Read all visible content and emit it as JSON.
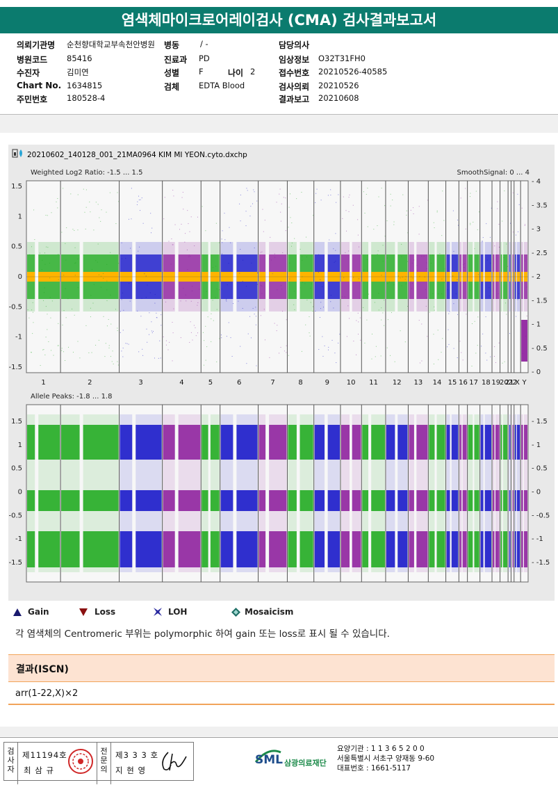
{
  "report": {
    "title": "염색체마이크로어레이검사 (CMA) 검사결과보고서"
  },
  "patient": {
    "labels": {
      "institution": "의뢰기관명",
      "hospital_code": "병원코드",
      "name": "수진자",
      "chart": "Chart No.",
      "rrn": "주민번호",
      "ward": "병동",
      "department": "진료과",
      "sex": "성별",
      "age": "나이",
      "specimen": "검체",
      "physician": "담당의사",
      "clinical": "임상정보",
      "receipt": "접수번호",
      "request": "검사의뢰",
      "report": "결과보고"
    },
    "values": {
      "institution": "순천향대학교부속천안병원",
      "hospital_code": "85416",
      "name": "김미연",
      "chart": "1634815",
      "rrn": "180528-4",
      "ward": "/ -",
      "department": "PD",
      "sex": "F",
      "age": "2",
      "specimen": "EDTA Blood",
      "physician": "",
      "clinical": "O32T31FH0",
      "receipt": "20210526-40585",
      "request": "20210526",
      "report": "20210608"
    }
  },
  "plot": {
    "file_label": "20210602_140128_001_21MA0964 KIM MI YEON.cyto.dxchp",
    "top_label": "Weighted Log2 Ratio: -1.5 ... 1.5",
    "top_right_label": "SmoothSignal: 0 ... 4",
    "bottom_label": "Allele Peaks: -1.8 ... 1.8",
    "top_left_ticks": [
      "1.5",
      "1",
      "0.5",
      "0",
      "-0.5",
      "-1",
      "-1.5"
    ],
    "top_right_ticks": [
      "4",
      "3.5",
      "3",
      "2.5",
      "2",
      "1.5",
      "1",
      "0.5",
      "0"
    ],
    "bottom_left_ticks": [
      "1.5",
      "1",
      "0.5",
      "0",
      "-0.5",
      "-1",
      "-1.5"
    ],
    "bottom_right_ticks": [
      "1.5",
      "1",
      "0.5",
      "0",
      "-0.5",
      "-1",
      "-1.5"
    ],
    "chromosomes": [
      "1",
      "2",
      "3",
      "4",
      "5",
      "6",
      "7",
      "8",
      "9",
      "10",
      "11",
      "12",
      "13",
      "14",
      "15",
      "16",
      "17",
      "18",
      "19",
      "20",
      "21",
      "22",
      "X",
      "Y"
    ],
    "colors": {
      "green": "#1aa81a",
      "blue": "#1010c8",
      "purple": "#8b1a9b",
      "orange": "#ffb400"
    }
  },
  "legend": {
    "gain": "Gain",
    "loss": "Loss",
    "loh": "LOH",
    "mosaicism": "Mosaicism"
  },
  "note": "각 염색체의 Centromeric 부위는 polymorphic 하여 gain 또는 loss로 표시 될 수 있습니다.",
  "result": {
    "header": "결과(ISCN)",
    "value": "arr(1-22,X)×2"
  },
  "footer": {
    "reviewer_label": "검사자",
    "reviewer_no": "제11194호",
    "reviewer_name": "최 삼 규",
    "specialist_label": "전문의",
    "specialist_no": "제3 3 3 호",
    "specialist_name": "지 현 영",
    "lab_short": "SML",
    "lab_name": "삼광의료재단",
    "care_no": "요양기관 : 1 1 3 6 5 2 0 0",
    "address": "서울특별시 서초구 양재동 9-60",
    "phone": "대표번호 : 1661-5117"
  }
}
